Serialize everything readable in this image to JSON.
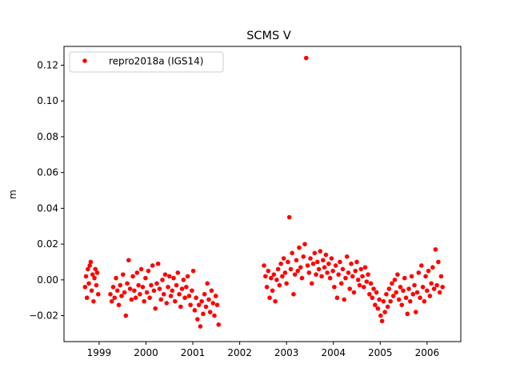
{
  "chart_data": {
    "type": "scatter",
    "title": "SCMS V",
    "xlabel": "",
    "ylabel": "m",
    "xlim": [
      1998.25,
      2006.72
    ],
    "ylim": [
      -0.0345,
      0.1305
    ],
    "x_ticks": [
      1999,
      2000,
      2001,
      2002,
      2003,
      2004,
      2005,
      2006
    ],
    "y_ticks": [
      -0.02,
      0.0,
      0.02,
      0.04,
      0.06,
      0.08,
      0.1,
      0.12
    ],
    "y_tick_labels": [
      "−0.02",
      "0.00",
      "0.02",
      "0.04",
      "0.06",
      "0.08",
      "0.10",
      "0.12"
    ],
    "grid": false,
    "legend": {
      "position": "top-left",
      "entries": [
        "repro2018a (IGS14)"
      ]
    },
    "series": [
      {
        "name": "repro2018a (IGS14)",
        "color": "#ff0000",
        "marker": "circle",
        "points": [
          [
            1998.7,
            -0.004
          ],
          [
            1998.72,
            0.002
          ],
          [
            1998.74,
            -0.01
          ],
          [
            1998.76,
            0.006
          ],
          [
            1998.78,
            -0.002
          ],
          [
            1998.8,
            0.008
          ],
          [
            1998.82,
            0.01
          ],
          [
            1998.84,
            -0.006
          ],
          [
            1998.86,
            0.003
          ],
          [
            1998.88,
            -0.012
          ],
          [
            1998.9,
            0.001
          ],
          [
            1998.92,
            0.006
          ],
          [
            1998.94,
            -0.003
          ],
          [
            1998.96,
            0.004
          ],
          [
            1998.98,
            -0.008
          ],
          [
            1999.24,
            -0.008
          ],
          [
            1999.27,
            -0.012
          ],
          [
            1999.3,
            -0.004
          ],
          [
            1999.33,
            -0.01
          ],
          [
            1999.36,
            0.001
          ],
          [
            1999.39,
            -0.006
          ],
          [
            1999.42,
            -0.014
          ],
          [
            1999.45,
            -0.003
          ],
          [
            1999.48,
            -0.009
          ],
          [
            1999.51,
            0.003
          ],
          [
            1999.54,
            -0.007
          ],
          [
            1999.57,
            -0.02
          ],
          [
            1999.6,
            -0.002
          ],
          [
            1999.63,
            0.011
          ],
          [
            1999.66,
            -0.005
          ],
          [
            1999.69,
            -0.011
          ],
          [
            1999.72,
            0.002
          ],
          [
            1999.75,
            -0.006
          ],
          [
            1999.78,
            -0.01
          ],
          [
            1999.81,
            0.004
          ],
          [
            1999.84,
            -0.003
          ],
          [
            1999.87,
            -0.008
          ],
          [
            1999.9,
            0.006
          ],
          [
            1999.93,
            -0.004
          ],
          [
            1999.96,
            -0.012
          ],
          [
            1999.99,
            0.001
          ],
          [
            2000.02,
            -0.007
          ],
          [
            2000.05,
            0.005
          ],
          [
            2000.08,
            -0.01
          ],
          [
            2000.11,
            -0.003
          ],
          [
            2000.14,
            0.008
          ],
          [
            2000.17,
            -0.006
          ],
          [
            2000.2,
            -0.016
          ],
          [
            2000.23,
            -0.002
          ],
          [
            2000.26,
            0.009
          ],
          [
            2000.29,
            -0.005
          ],
          [
            2000.32,
            -0.011
          ],
          [
            2000.35,
            0.0
          ],
          [
            2000.38,
            -0.008
          ],
          [
            2000.41,
            0.003
          ],
          [
            2000.44,
            -0.013
          ],
          [
            2000.47,
            -0.004
          ],
          [
            2000.5,
            0.002
          ],
          [
            2000.53,
            -0.009
          ],
          [
            2000.56,
            -0.006
          ],
          [
            2000.59,
            0.001
          ],
          [
            2000.62,
            -0.012
          ],
          [
            2000.65,
            -0.003
          ],
          [
            2000.68,
            0.004
          ],
          [
            2000.71,
            -0.008
          ],
          [
            2000.74,
            -0.015
          ],
          [
            2000.77,
            -0.005
          ],
          [
            2000.8,
            0.0
          ],
          [
            2000.83,
            -0.01
          ],
          [
            2000.86,
            -0.004
          ],
          [
            2000.89,
            0.002
          ],
          [
            2000.92,
            -0.009
          ],
          [
            2000.95,
            -0.014
          ],
          [
            2000.98,
            -0.006
          ],
          [
            2001.01,
            0.005
          ],
          [
            2001.04,
            -0.017
          ],
          [
            2001.07,
            -0.01
          ],
          [
            2001.1,
            -0.022
          ],
          [
            2001.13,
            -0.014
          ],
          [
            2001.16,
            -0.026
          ],
          [
            2001.19,
            -0.012
          ],
          [
            2001.22,
            -0.019
          ],
          [
            2001.25,
            -0.008
          ],
          [
            2001.28,
            -0.015
          ],
          [
            2001.31,
            -0.002
          ],
          [
            2001.34,
            -0.011
          ],
          [
            2001.37,
            -0.018
          ],
          [
            2001.4,
            -0.006
          ],
          [
            2001.43,
            -0.013
          ],
          [
            2001.46,
            -0.02
          ],
          [
            2001.49,
            -0.009
          ],
          [
            2001.52,
            -0.014
          ],
          [
            2001.55,
            -0.025
          ],
          [
            2002.52,
            0.008
          ],
          [
            2002.55,
            0.002
          ],
          [
            2002.58,
            -0.004
          ],
          [
            2002.61,
            0.005
          ],
          [
            2002.64,
            -0.01
          ],
          [
            2002.67,
            0.001
          ],
          [
            2002.7,
            -0.006
          ],
          [
            2002.73,
            0.003
          ],
          [
            2002.76,
            -0.012
          ],
          [
            2002.79,
            0.0
          ],
          [
            2002.82,
            0.006
          ],
          [
            2002.85,
            -0.003
          ],
          [
            2002.88,
            0.009
          ],
          [
            2002.91,
            0.002
          ],
          [
            2002.94,
            0.012
          ],
          [
            2002.97,
            0.004
          ],
          [
            2003.0,
            -0.002
          ],
          [
            2003.03,
            0.01
          ],
          [
            2003.06,
            0.035
          ],
          [
            2003.09,
            0.006
          ],
          [
            2003.12,
            0.015
          ],
          [
            2003.15,
            -0.008
          ],
          [
            2003.18,
            0.003
          ],
          [
            2003.21,
            0.011
          ],
          [
            2003.24,
            0.005
          ],
          [
            2003.27,
            0.018
          ],
          [
            2003.3,
            0.007
          ],
          [
            2003.33,
            0.001
          ],
          [
            2003.36,
            0.013
          ],
          [
            2003.39,
            0.02
          ],
          [
            2003.42,
            0.124
          ],
          [
            2003.45,
            0.008
          ],
          [
            2003.48,
            0.004
          ],
          [
            2003.51,
            0.012
          ],
          [
            2003.54,
            -0.002
          ],
          [
            2003.57,
            0.009
          ],
          [
            2003.6,
            0.015
          ],
          [
            2003.63,
            0.003
          ],
          [
            2003.66,
            0.01
          ],
          [
            2003.69,
            0.006
          ],
          [
            2003.72,
            0.016
          ],
          [
            2003.75,
            0.002
          ],
          [
            2003.78,
            0.011
          ],
          [
            2003.81,
            0.007
          ],
          [
            2003.84,
            0.014
          ],
          [
            2003.87,
            0.004
          ],
          [
            2003.9,
            0.009
          ],
          [
            2003.93,
            0.001
          ],
          [
            2003.96,
            0.012
          ],
          [
            2003.99,
            0.005
          ],
          [
            2004.02,
            -0.004
          ],
          [
            2004.05,
            0.008
          ],
          [
            2004.08,
            -0.01
          ],
          [
            2004.11,
            0.003
          ],
          [
            2004.14,
            0.01
          ],
          [
            2004.17,
            -0.002
          ],
          [
            2004.2,
            0.006
          ],
          [
            2004.23,
            -0.011
          ],
          [
            2004.26,
            0.001
          ],
          [
            2004.29,
            0.013
          ],
          [
            2004.32,
            0.004
          ],
          [
            2004.35,
            -0.005
          ],
          [
            2004.38,
            0.009
          ],
          [
            2004.41,
            0.002
          ],
          [
            2004.44,
            -0.007
          ],
          [
            2004.47,
            0.005
          ],
          [
            2004.5,
            0.01
          ],
          [
            2004.53,
            0.0
          ],
          [
            2004.56,
            -0.003
          ],
          [
            2004.59,
            0.006
          ],
          [
            2004.62,
            0.002
          ],
          [
            2004.65,
            -0.004
          ],
          [
            2004.68,
            0.007
          ],
          [
            2004.71,
            -0.001
          ],
          [
            2004.74,
            0.003
          ],
          [
            2004.77,
            -0.008
          ],
          [
            2004.8,
            -0.002
          ],
          [
            2004.83,
            -0.01
          ],
          [
            2004.86,
            -0.005
          ],
          [
            2004.89,
            -0.014
          ],
          [
            2004.92,
            -0.007
          ],
          [
            2004.95,
            -0.016
          ],
          [
            2004.98,
            -0.011
          ],
          [
            2005.01,
            -0.02
          ],
          [
            2005.04,
            -0.023
          ],
          [
            2005.07,
            -0.012
          ],
          [
            2005.1,
            -0.018
          ],
          [
            2005.13,
            -0.008
          ],
          [
            2005.16,
            -0.015
          ],
          [
            2005.19,
            -0.005
          ],
          [
            2005.22,
            -0.012
          ],
          [
            2005.25,
            -0.002
          ],
          [
            2005.28,
            -0.009
          ],
          [
            2005.31,
            0.0
          ],
          [
            2005.34,
            -0.007
          ],
          [
            2005.37,
            0.003
          ],
          [
            2005.4,
            -0.011
          ],
          [
            2005.43,
            -0.004
          ],
          [
            2005.46,
            -0.014
          ],
          [
            2005.49,
            -0.006
          ],
          [
            2005.52,
            0.001
          ],
          [
            2005.55,
            -0.01
          ],
          [
            2005.58,
            -0.019
          ],
          [
            2005.61,
            -0.005
          ],
          [
            2005.64,
            -0.012
          ],
          [
            2005.67,
            0.002
          ],
          [
            2005.7,
            -0.008
          ],
          [
            2005.73,
            -0.003
          ],
          [
            2005.76,
            -0.018
          ],
          [
            2005.79,
            -0.007
          ],
          [
            2005.82,
            0.004
          ],
          [
            2005.85,
            -0.01
          ],
          [
            2005.88,
            0.008
          ],
          [
            2005.91,
            -0.004
          ],
          [
            2005.94,
            -0.012
          ],
          [
            2005.97,
            0.002
          ],
          [
            2006.0,
            -0.006
          ],
          [
            2006.03,
            0.005
          ],
          [
            2006.06,
            -0.009
          ],
          [
            2006.09,
            -0.002
          ],
          [
            2006.12,
            0.007
          ],
          [
            2006.15,
            -0.005
          ],
          [
            2006.18,
            0.017
          ],
          [
            2006.21,
            -0.003
          ],
          [
            2006.24,
            0.01
          ],
          [
            2006.27,
            -0.007
          ],
          [
            2006.3,
            0.002
          ],
          [
            2006.33,
            -0.004
          ]
        ]
      }
    ]
  }
}
